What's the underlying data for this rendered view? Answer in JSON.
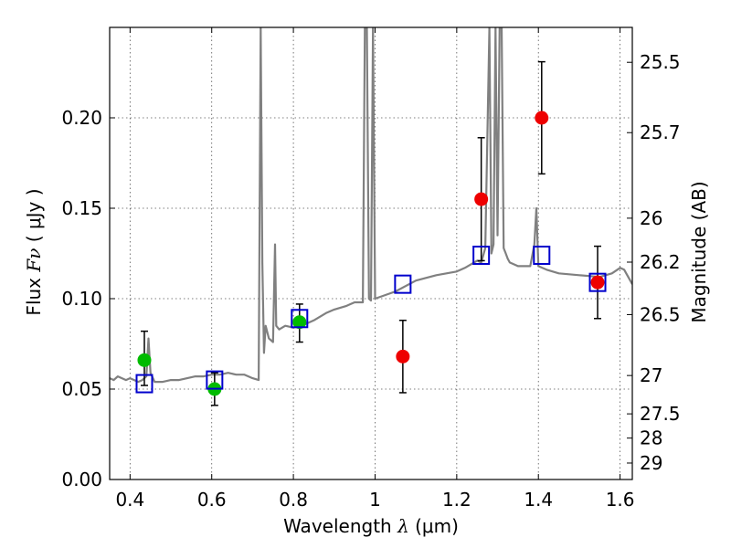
{
  "chart_data": {
    "type": "scatter",
    "xlabel": {
      "prefix": "Wavelength ",
      "symbol": "λ",
      "unit": " (μm)"
    },
    "ylabel": {
      "prefix": "Flux ",
      "symbol": "Fν",
      "unit": " ( μJy )"
    },
    "ylabel_right": "Magnitude (AB)",
    "xlim": [
      0.35,
      1.63
    ],
    "ylim": [
      0.0,
      0.25
    ],
    "grid": true,
    "x_ticks": [
      {
        "value": 0.4,
        "label": "0.4"
      },
      {
        "value": 0.6,
        "label": "0.6"
      },
      {
        "value": 0.8,
        "label": "0.8"
      },
      {
        "value": 1.0,
        "label": "1"
      },
      {
        "value": 1.2,
        "label": "1.2"
      },
      {
        "value": 1.4,
        "label": "1.4"
      },
      {
        "value": 1.6,
        "label": "1.6"
      }
    ],
    "y_ticks": [
      {
        "value": 0.0,
        "label": "0.00"
      },
      {
        "value": 0.05,
        "label": "0.05"
      },
      {
        "value": 0.1,
        "label": "0.10"
      },
      {
        "value": 0.15,
        "label": "0.15"
      },
      {
        "value": 0.2,
        "label": "0.20"
      }
    ],
    "mag_ticks": [
      {
        "flux": 0.2307,
        "label": "25.5"
      },
      {
        "flux": 0.1918,
        "label": "25.7"
      },
      {
        "flux": 0.1445,
        "label": "26"
      },
      {
        "flux": 0.1202,
        "label": "26.2"
      },
      {
        "flux": 0.0912,
        "label": "26.5"
      },
      {
        "flux": 0.0575,
        "label": "27"
      },
      {
        "flux": 0.0363,
        "label": "27.5"
      },
      {
        "flux": 0.0229,
        "label": "28"
      },
      {
        "flux": 0.0091,
        "label": "29"
      }
    ],
    "colors": {
      "spectrum": "#808080",
      "green": "#00bb00",
      "red": "#ee0000",
      "model": "#0000cc",
      "error": "#000000",
      "grid": "#555555"
    },
    "series": [
      {
        "name": "spectrum",
        "kind": "line",
        "x": [
          0.35,
          0.36,
          0.37,
          0.38,
          0.39,
          0.4,
          0.41,
          0.42,
          0.43,
          0.44,
          0.445,
          0.45,
          0.46,
          0.48,
          0.5,
          0.52,
          0.54,
          0.56,
          0.58,
          0.6,
          0.62,
          0.64,
          0.66,
          0.68,
          0.7,
          0.715,
          0.72,
          0.724,
          0.728,
          0.732,
          0.74,
          0.75,
          0.755,
          0.758,
          0.765,
          0.78,
          0.8,
          0.82,
          0.85,
          0.88,
          0.9,
          0.93,
          0.95,
          0.97,
          0.975,
          0.98,
          0.985,
          0.99,
          0.995,
          1.0,
          1.05,
          1.1,
          1.15,
          1.2,
          1.22,
          1.25,
          1.26,
          1.27,
          1.28,
          1.285,
          1.29,
          1.295,
          1.3,
          1.305,
          1.31,
          1.315,
          1.32,
          1.325,
          1.33,
          1.35,
          1.38,
          1.39,
          1.395,
          1.4,
          1.42,
          1.45,
          1.5,
          1.55,
          1.58,
          1.6,
          1.61,
          1.62,
          1.63
        ],
        "y": [
          0.056,
          0.055,
          0.057,
          0.056,
          0.055,
          0.056,
          0.055,
          0.054,
          0.055,
          0.057,
          0.078,
          0.059,
          0.054,
          0.054,
          0.055,
          0.055,
          0.056,
          0.057,
          0.057,
          0.058,
          0.058,
          0.059,
          0.058,
          0.058,
          0.056,
          0.055,
          0.25,
          0.12,
          0.07,
          0.085,
          0.078,
          0.076,
          0.13,
          0.085,
          0.083,
          0.085,
          0.084,
          0.085,
          0.088,
          0.092,
          0.094,
          0.096,
          0.098,
          0.098,
          0.25,
          0.25,
          0.1,
          0.099,
          0.25,
          0.1,
          0.104,
          0.11,
          0.113,
          0.115,
          0.117,
          0.121,
          0.12,
          0.128,
          0.25,
          0.125,
          0.13,
          0.25,
          0.135,
          0.25,
          0.25,
          0.128,
          0.125,
          0.122,
          0.12,
          0.118,
          0.118,
          0.13,
          0.15,
          0.118,
          0.116,
          0.114,
          0.113,
          0.112,
          0.114,
          0.117,
          0.116,
          0.112,
          0.108
        ]
      },
      {
        "name": "green-photometry",
        "kind": "points",
        "color": "green",
        "points": [
          {
            "x": 0.435,
            "y": 0.066,
            "yerr_low": 0.014,
            "yerr_high": 0.016
          },
          {
            "x": 0.607,
            "y": 0.05,
            "yerr_low": 0.009,
            "yerr_high": 0.009
          },
          {
            "x": 0.815,
            "y": 0.087,
            "yerr_low": 0.011,
            "yerr_high": 0.01
          }
        ]
      },
      {
        "name": "red-photometry",
        "kind": "points",
        "color": "red",
        "points": [
          {
            "x": 1.068,
            "y": 0.068,
            "yerr_low": 0.02,
            "yerr_high": 0.02
          },
          {
            "x": 1.26,
            "y": 0.155,
            "yerr_low": 0.034,
            "yerr_high": 0.034
          },
          {
            "x": 1.408,
            "y": 0.2,
            "yerr_low": 0.031,
            "yerr_high": 0.031
          },
          {
            "x": 1.545,
            "y": 0.109,
            "yerr_low": 0.02,
            "yerr_high": 0.02
          }
        ]
      },
      {
        "name": "model-photometry",
        "kind": "open-squares",
        "color": "model",
        "points": [
          {
            "x": 0.435,
            "y": 0.053
          },
          {
            "x": 0.607,
            "y": 0.055
          },
          {
            "x": 0.815,
            "y": 0.089
          },
          {
            "x": 1.068,
            "y": 0.108
          },
          {
            "x": 1.26,
            "y": 0.124
          },
          {
            "x": 1.408,
            "y": 0.124
          },
          {
            "x": 1.545,
            "y": 0.109
          }
        ]
      }
    ]
  }
}
